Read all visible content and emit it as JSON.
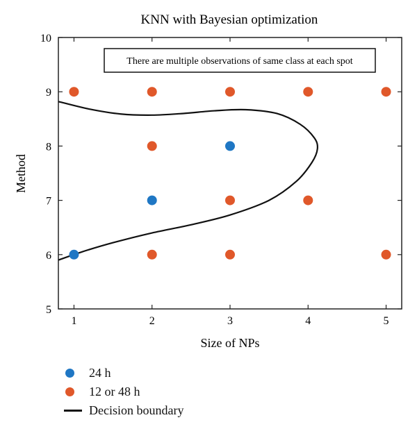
{
  "chart_data": {
    "type": "scatter",
    "title": "KNN with Bayesian optimization",
    "xlabel": "Size of NPs",
    "ylabel": "Method",
    "xlim": [
      0.8,
      5.2
    ],
    "ylim": [
      5,
      10
    ],
    "xticks": [
      1,
      2,
      3,
      4,
      5
    ],
    "yticks": [
      5,
      6,
      7,
      8,
      9,
      10
    ],
    "annotation": "There are multiple observations of same class at each spot",
    "grid": false,
    "legend_placement": "bottom-left, below plot",
    "series": [
      {
        "name": "24 h",
        "color": "#1f77c4",
        "points": [
          {
            "x": 1,
            "y": 6
          },
          {
            "x": 2,
            "y": 7
          },
          {
            "x": 3,
            "y": 8
          }
        ]
      },
      {
        "name": "12 or 48 h",
        "color": "#e0582a",
        "points": [
          {
            "x": 1,
            "y": 9
          },
          {
            "x": 2,
            "y": 9
          },
          {
            "x": 3,
            "y": 9
          },
          {
            "x": 4,
            "y": 9
          },
          {
            "x": 5,
            "y": 9
          },
          {
            "x": 2,
            "y": 8
          },
          {
            "x": 3,
            "y": 7
          },
          {
            "x": 4,
            "y": 7
          },
          {
            "x": 2,
            "y": 6
          },
          {
            "x": 3,
            "y": 6
          },
          {
            "x": 5,
            "y": 6
          }
        ]
      }
    ],
    "boundary": {
      "name": "Decision boundary",
      "color": "#111111",
      "points": [
        [
          0.8,
          8.82
        ],
        [
          1.2,
          8.68
        ],
        [
          1.6,
          8.59
        ],
        [
          2.0,
          8.57
        ],
        [
          2.4,
          8.6
        ],
        [
          2.8,
          8.65
        ],
        [
          3.2,
          8.67
        ],
        [
          3.6,
          8.6
        ],
        [
          3.9,
          8.4
        ],
        [
          4.08,
          8.15
        ],
        [
          4.12,
          7.95
        ],
        [
          4.05,
          7.7
        ],
        [
          3.85,
          7.35
        ],
        [
          3.5,
          7.0
        ],
        [
          3.0,
          6.73
        ],
        [
          2.5,
          6.55
        ],
        [
          2.0,
          6.4
        ],
        [
          1.5,
          6.22
        ],
        [
          1.1,
          6.05
        ],
        [
          0.8,
          5.9
        ]
      ]
    }
  }
}
